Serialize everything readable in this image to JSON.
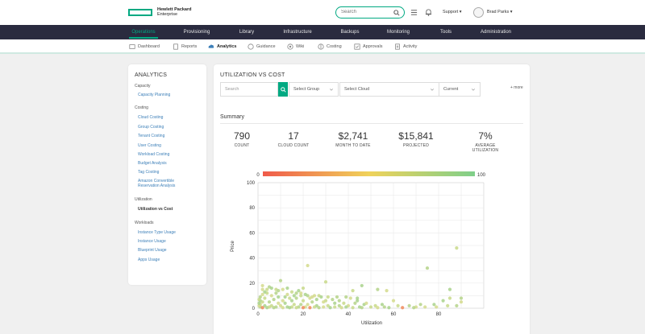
{
  "brand": {
    "line1": "Hewlett Packard",
    "line2": "Enterprise",
    "color": "#01a982"
  },
  "header": {
    "search_placeholder": "Search",
    "support_label": "Support ▾",
    "user_name": "Brad Parks ▾",
    "icons": [
      "search-icon",
      "list-icon",
      "bell-icon"
    ]
  },
  "nav": {
    "items": [
      {
        "label": "Operations",
        "active": true
      },
      {
        "label": "Provisioning"
      },
      {
        "label": "Library"
      },
      {
        "label": "Infrastructure"
      },
      {
        "label": "Backups"
      },
      {
        "label": "Monitoring"
      },
      {
        "label": "Tools"
      },
      {
        "label": "Administration"
      }
    ]
  },
  "subnav": {
    "items": [
      {
        "label": "Dashboard",
        "icon": "dashboard-icon"
      },
      {
        "label": "Reports",
        "icon": "reports-icon"
      },
      {
        "label": "Analytics",
        "icon": "cloud-icon",
        "active": true
      },
      {
        "label": "Guidance",
        "icon": "compass-icon"
      },
      {
        "label": "Wiki",
        "icon": "wiki-icon"
      },
      {
        "label": "Costing",
        "icon": "costing-icon"
      },
      {
        "label": "Approvals",
        "icon": "approvals-icon"
      },
      {
        "label": "Activity",
        "icon": "activity-icon"
      }
    ]
  },
  "sidebar": {
    "title": "ANALYTICS",
    "sections": [
      {
        "category": "Capacity",
        "links": [
          "Capacity Planning"
        ]
      },
      {
        "category": "Costing",
        "links": [
          "Cloud Costing",
          "Group Costing",
          "Tenant Costing",
          "User Costing",
          "Workload Costing",
          "Budget Analysis",
          "Tag Costing",
          "Amazon Convertible Reservation Analysis"
        ]
      },
      {
        "category": "Utilization",
        "links": [
          "Utilization vs Cost"
        ]
      },
      {
        "category": "Workloads",
        "links": [
          "Instance Type Usage",
          "Instance Usage",
          "Blueprint Usage",
          "Apps Usage"
        ]
      }
    ]
  },
  "main": {
    "title": "UTILIZATION VS COST",
    "filters": {
      "search_placeholder": "Search",
      "group": "Select Group",
      "cloud": "Select Cloud",
      "period": "Current"
    },
    "more_label": "+ more",
    "summary_title": "Summary",
    "stats": [
      {
        "value": "790",
        "label": "COUNT"
      },
      {
        "value": "17",
        "label": "CLOUD COUNT"
      },
      {
        "value": "$2,741",
        "label": "MONTH TO DATE"
      },
      {
        "value": "$15,841",
        "label": "PROJECTED"
      },
      {
        "value": "7%",
        "label": "AVERAGE UTILIZATION"
      }
    ]
  },
  "chart_data": {
    "type": "scatter",
    "xlabel": "Utilization",
    "ylabel": "Price",
    "xlim": [
      0,
      100
    ],
    "ylim": [
      0,
      100
    ],
    "xticks": [
      0,
      20,
      40,
      60,
      80
    ],
    "yticks": [
      0,
      20,
      40,
      60,
      80,
      100
    ],
    "grid": true,
    "color_scale": {
      "min_label": "0",
      "max_label": "100",
      "colors": [
        "#f05a4a",
        "#f0d25a",
        "#7fcf8a"
      ]
    },
    "points": [
      [
        88,
        48
      ],
      [
        75,
        32
      ],
      [
        22,
        34
      ],
      [
        46,
        18
      ],
      [
        30,
        21
      ],
      [
        10,
        22
      ],
      [
        2,
        15
      ],
      [
        18,
        14
      ],
      [
        20,
        16
      ],
      [
        53,
        15
      ],
      [
        57,
        14
      ],
      [
        85,
        15
      ],
      [
        85,
        8
      ],
      [
        90,
        8
      ],
      [
        90,
        5
      ],
      [
        44,
        6
      ],
      [
        42,
        14
      ],
      [
        39,
        9
      ],
      [
        24,
        9
      ],
      [
        12,
        9
      ],
      [
        27,
        10
      ],
      [
        33,
        7
      ],
      [
        60,
        6
      ],
      [
        82,
        6
      ],
      [
        84,
        2
      ],
      [
        88,
        2
      ],
      [
        70,
        1
      ],
      [
        47,
        3
      ],
      [
        52,
        2
      ],
      [
        72,
        3
      ],
      [
        79,
        1
      ],
      [
        78,
        3
      ],
      [
        4,
        12
      ],
      [
        8,
        12
      ],
      [
        13,
        11
      ],
      [
        16,
        10
      ],
      [
        19,
        10
      ],
      [
        22,
        10
      ],
      [
        25,
        10
      ],
      [
        28,
        9
      ],
      [
        31,
        9
      ],
      [
        35,
        9
      ],
      [
        6,
        10
      ],
      [
        9,
        9
      ],
      [
        14,
        8
      ],
      [
        17,
        8
      ],
      [
        23,
        8
      ],
      [
        26,
        7
      ],
      [
        30,
        6
      ],
      [
        36,
        6
      ],
      [
        41,
        8
      ],
      [
        44,
        8
      ],
      [
        3,
        8
      ],
      [
        7,
        7
      ],
      [
        11,
        6
      ],
      [
        15,
        6
      ],
      [
        20,
        6
      ],
      [
        24,
        5
      ],
      [
        29,
        5
      ],
      [
        34,
        4
      ],
      [
        38,
        4
      ],
      [
        43,
        4
      ],
      [
        48,
        4
      ],
      [
        55,
        3
      ],
      [
        62,
        2
      ],
      [
        67,
        2
      ],
      [
        74,
        1
      ],
      [
        1,
        6
      ],
      [
        2,
        5
      ],
      [
        5,
        5
      ],
      [
        9,
        4
      ],
      [
        12,
        4
      ],
      [
        16,
        3
      ],
      [
        19,
        3
      ],
      [
        22,
        3
      ],
      [
        26,
        2
      ],
      [
        31,
        2
      ],
      [
        36,
        2
      ],
      [
        40,
        2
      ],
      [
        45,
        1
      ],
      [
        50,
        1
      ],
      [
        56,
        1
      ],
      [
        1,
        3
      ],
      [
        3,
        2
      ],
      [
        6,
        2
      ],
      [
        8,
        1
      ],
      [
        10,
        2
      ],
      [
        13,
        1
      ],
      [
        15,
        1
      ],
      [
        18,
        1
      ],
      [
        21,
        1
      ],
      [
        23,
        0.5
      ],
      [
        25,
        1
      ],
      [
        27,
        0.5
      ],
      [
        29,
        1
      ],
      [
        32,
        0.5
      ],
      [
        34,
        1
      ],
      [
        1,
        1
      ],
      [
        2,
        0.5
      ],
      [
        4,
        0.5
      ],
      [
        5,
        1
      ],
      [
        7,
        0.5
      ],
      [
        11,
        0.5
      ],
      [
        14,
        0.5
      ],
      [
        17,
        0.5
      ],
      [
        20,
        0.5
      ],
      [
        37,
        0.5
      ],
      [
        39,
        1
      ],
      [
        42,
        0.5
      ],
      [
        46,
        0.5
      ],
      [
        53,
        0.5
      ],
      [
        58,
        0.5
      ],
      [
        64,
        0.5
      ],
      [
        69,
        0.5
      ],
      [
        0.5,
        2
      ],
      [
        0.5,
        4
      ],
      [
        0.5,
        7
      ],
      [
        1,
        9
      ],
      [
        2,
        11
      ],
      [
        3,
        13
      ],
      [
        4,
        15
      ],
      [
        5,
        17
      ],
      [
        2,
        18
      ],
      [
        6,
        16
      ],
      [
        8,
        15
      ],
      [
        9,
        14
      ],
      [
        11,
        15
      ],
      [
        13,
        16
      ],
      [
        15,
        13
      ],
      [
        17,
        12
      ],
      [
        19,
        12
      ],
      [
        21,
        11
      ]
    ]
  }
}
